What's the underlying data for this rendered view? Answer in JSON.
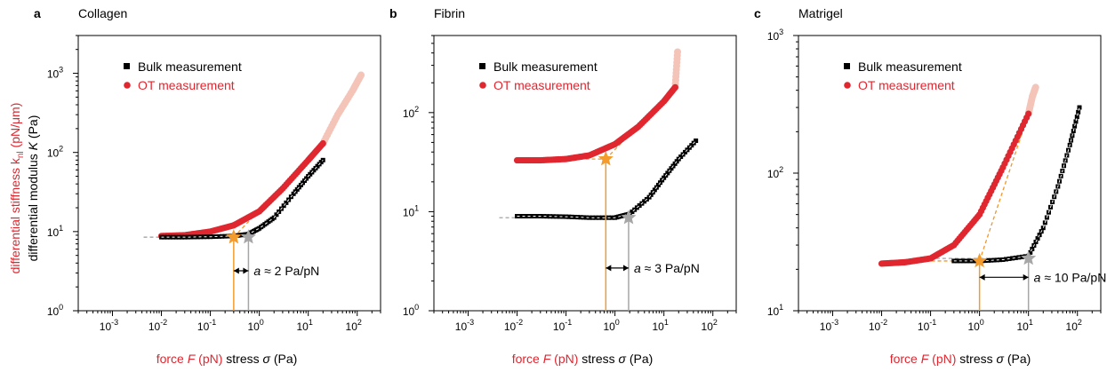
{
  "figure": {
    "y_label_red": "differential stiffness k",
    "y_label_red_sub": "nl",
    "y_label_red_unit": " (pN/μm)",
    "y_label_black_pre": "differential modulus ",
    "y_label_black_var": "K",
    "y_label_black_unit": " (Pa)",
    "x_label_red_pre": "force ",
    "x_label_red_var": "F",
    "x_label_red_unit": " (pN)",
    "x_label_black_pre": " stress ",
    "x_label_black_var": "σ",
    "x_label_black_unit": " (Pa)",
    "colors": {
      "bulk": "#000000",
      "ot": "#e0262f",
      "ot_faded": "#f5c4b8",
      "fit": "#f0972e",
      "star_ot": "#f39c2d",
      "star_bulk": "#a6a6a6",
      "vline_ot": "#f39c2d",
      "vline_bulk": "#a6a6a6"
    }
  },
  "chart_data": [
    {
      "panel": "a",
      "title": "Collagen",
      "type": "scatter",
      "xscale": "log",
      "yscale": "log",
      "xlim": [
        0.0002,
        300
      ],
      "ylim": [
        1,
        3000
      ],
      "xticks": [
        "10^-3",
        "10^-2",
        "10^-1",
        "10^0",
        "10^1",
        "10^2"
      ],
      "yticks": [
        "10^0",
        "10^1",
        "10^2",
        "10^3"
      ],
      "legend": {
        "placement": "top-left",
        "entries": [
          "Bulk measurement",
          "OT measurement"
        ]
      },
      "series": [
        {
          "name": "Bulk measurement",
          "x": [
            0.01,
            0.03,
            0.1,
            0.3,
            0.6,
            1,
            2,
            5,
            10,
            20
          ],
          "y": [
            8.5,
            8.5,
            8.6,
            8.8,
            9.3,
            11,
            15,
            30,
            50,
            80
          ]
        },
        {
          "name": "OT measurement",
          "x": [
            0.01,
            0.03,
            0.1,
            0.3,
            1,
            3,
            10,
            20
          ],
          "y": [
            8.8,
            9,
            10,
            12,
            18,
            35,
            80,
            130
          ]
        },
        {
          "name": "OT measurement (faded)",
          "x": [
            20,
            40,
            80,
            120
          ],
          "y": [
            130,
            300,
            600,
            950
          ]
        }
      ],
      "markers": {
        "ot_x": 0.3,
        "ot_y": 8.5,
        "bulk_x": 0.6,
        "bulk_y": 8.5
      },
      "annotation": {
        "var": "a",
        "text": " ≈ 2 Pa/pN",
        "y": 3.2
      }
    },
    {
      "panel": "b",
      "title": "Fibrin",
      "type": "scatter",
      "xscale": "log",
      "yscale": "log",
      "xlim": [
        0.0002,
        300
      ],
      "ylim": [
        1,
        600
      ],
      "xticks": [
        "10^-3",
        "10^-2",
        "10^-1",
        "10^0",
        "10^1",
        "10^2"
      ],
      "yticks": [
        "10^0",
        "10^1",
        "10^2"
      ],
      "legend": {
        "placement": "top-left",
        "entries": [
          "Bulk measurement",
          "OT measurement"
        ]
      },
      "series": [
        {
          "name": "Bulk measurement",
          "x": [
            0.01,
            0.03,
            0.1,
            0.3,
            1,
            2,
            5,
            10,
            20,
            45
          ],
          "y": [
            9,
            9,
            8.9,
            8.7,
            8.7,
            9.5,
            14,
            22,
            34,
            52
          ]
        },
        {
          "name": "OT measurement",
          "x": [
            0.01,
            0.03,
            0.1,
            0.3,
            1,
            3,
            10,
            17
          ],
          "y": [
            33,
            33,
            34,
            37,
            48,
            72,
            130,
            180
          ]
        },
        {
          "name": "OT measurement (faded)",
          "x": [
            17,
            19
          ],
          "y": [
            180,
            410
          ]
        }
      ],
      "markers": {
        "ot_x": 0.65,
        "ot_y": 34,
        "bulk_x": 1.9,
        "bulk_y": 8.7
      },
      "annotation": {
        "var": "a",
        "text": " ≈ 3 Pa/pN",
        "y": 2.7
      }
    },
    {
      "panel": "c",
      "title": "Matrigel",
      "type": "scatter",
      "xscale": "log",
      "yscale": "log",
      "xlim": [
        0.0002,
        300
      ],
      "ylim": [
        10,
        1000
      ],
      "xticks": [
        "10^-3",
        "10^-2",
        "10^-1",
        "10^0",
        "10^1",
        "10^2"
      ],
      "yticks": [
        "10^1",
        "10^2",
        "10^3"
      ],
      "legend": {
        "placement": "top-left",
        "entries": [
          "Bulk measurement",
          "OT measurement"
        ]
      },
      "series": [
        {
          "name": "Bulk measurement",
          "x": [
            0.3,
            1,
            3,
            10,
            20,
            40,
            70,
            110
          ],
          "y": [
            23,
            23,
            23.5,
            25,
            40,
            80,
            160,
            300
          ]
        },
        {
          "name": "OT measurement",
          "x": [
            0.01,
            0.03,
            0.1,
            0.3,
            1,
            3,
            10
          ],
          "y": [
            22,
            22.5,
            24,
            30,
            50,
            110,
            270
          ]
        },
        {
          "name": "OT measurement (faded)",
          "x": [
            10,
            12,
            14
          ],
          "y": [
            270,
            360,
            420
          ]
        }
      ],
      "markers": {
        "ot_x": 1,
        "ot_y": 23,
        "bulk_x": 10,
        "bulk_y": 24
      },
      "annotation": {
        "var": "a",
        "text": " ≈ 10 Pa/pN",
        "y": 17.5
      }
    }
  ]
}
